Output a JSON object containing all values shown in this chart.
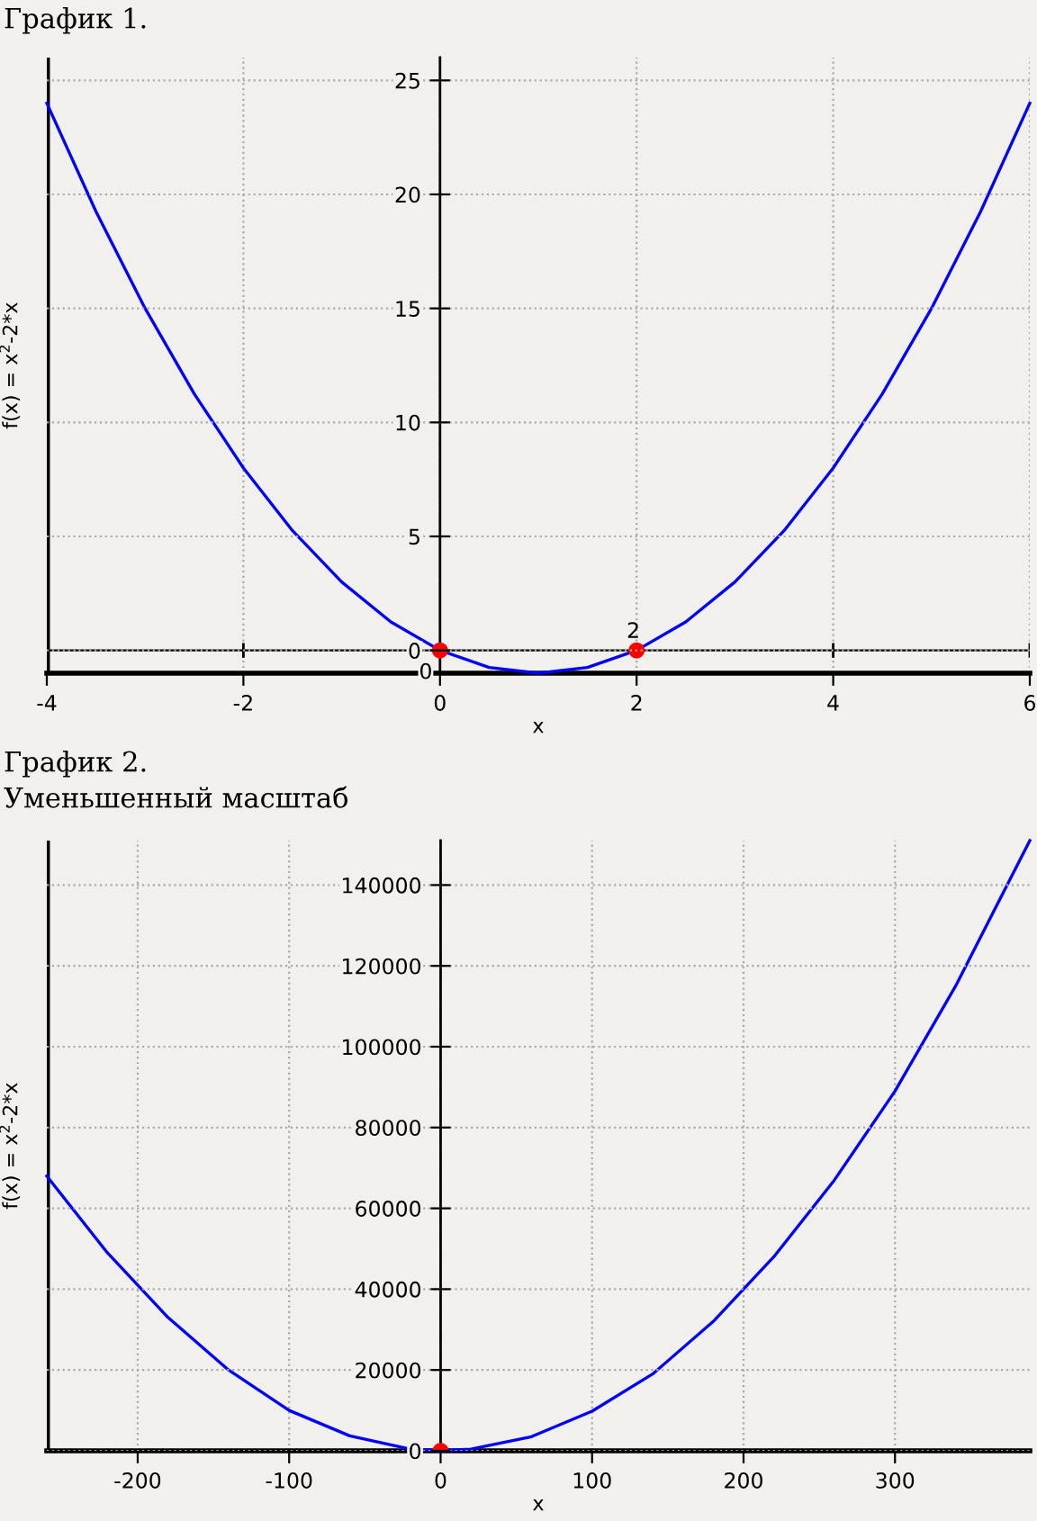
{
  "chart_data": [
    {
      "type": "line",
      "title": "График 1.",
      "xlabel": "x",
      "ylabel": "f(x) = x$^{2}$-2*x",
      "xlim": [
        -4,
        6
      ],
      "ylim": [
        -1,
        26
      ],
      "xticks": [
        -4,
        -2,
        0,
        2,
        4,
        6
      ],
      "yticks": [
        0,
        5,
        10,
        15,
        20,
        25
      ],
      "grid": true,
      "series": [
        {
          "color": "#0000ff",
          "marker": "none",
          "x": [
            -4,
            -3.5,
            -3,
            -2.5,
            -2,
            -1.5,
            -1,
            -0.5,
            0,
            0.5,
            1,
            1.5,
            2,
            2.5,
            3,
            3.5,
            4,
            4.5,
            5,
            5.5,
            6
          ],
          "values": [
            24,
            19.25,
            15,
            11.25,
            8,
            5.25,
            3,
            1.25,
            0,
            -0.75,
            -1,
            -0.75,
            0,
            1.25,
            3,
            5.25,
            8,
            11.25,
            15,
            19.25,
            24
          ]
        },
        {
          "type": "scatter",
          "color": "#ff0000",
          "marker": "circle",
          "x": [
            0,
            2
          ],
          "values": [
            0,
            0
          ]
        }
      ],
      "annotations": [
        {
          "text": "0",
          "x": 0,
          "y": 0
        },
        {
          "text": "2",
          "x": 2,
          "y": 0
        }
      ]
    },
    {
      "type": "line",
      "title": "График 2.",
      "subtitle": "Уменьшенный масштаб",
      "xlabel": "x",
      "ylabel": "f(x) = x$^{2}$-2*x",
      "xlim": [
        -260,
        389
      ],
      "ylim": [
        -1,
        151000
      ],
      "xticks": [
        -200,
        -100,
        0,
        100,
        200,
        300
      ],
      "yticks": [
        0,
        20000,
        40000,
        60000,
        80000,
        100000,
        120000,
        140000
      ],
      "grid": true,
      "series": [
        {
          "color": "#0000ff",
          "marker": "none",
          "x": [
            -260,
            -220,
            -180,
            -140,
            -100,
            -60,
            -20,
            0,
            20,
            60,
            100,
            140,
            180,
            220,
            260,
            300,
            340,
            389
          ],
          "values": [
            68000,
            49000,
            33000,
            20000,
            10000,
            3700,
            400,
            0,
            400,
            3500,
            9800,
            19000,
            32000,
            48000,
            67000,
            89000,
            115000,
            151000
          ]
        },
        {
          "type": "scatter",
          "color": "#ff0000",
          "marker": "circle",
          "x": [
            0
          ],
          "values": [
            0
          ]
        }
      ]
    }
  ]
}
